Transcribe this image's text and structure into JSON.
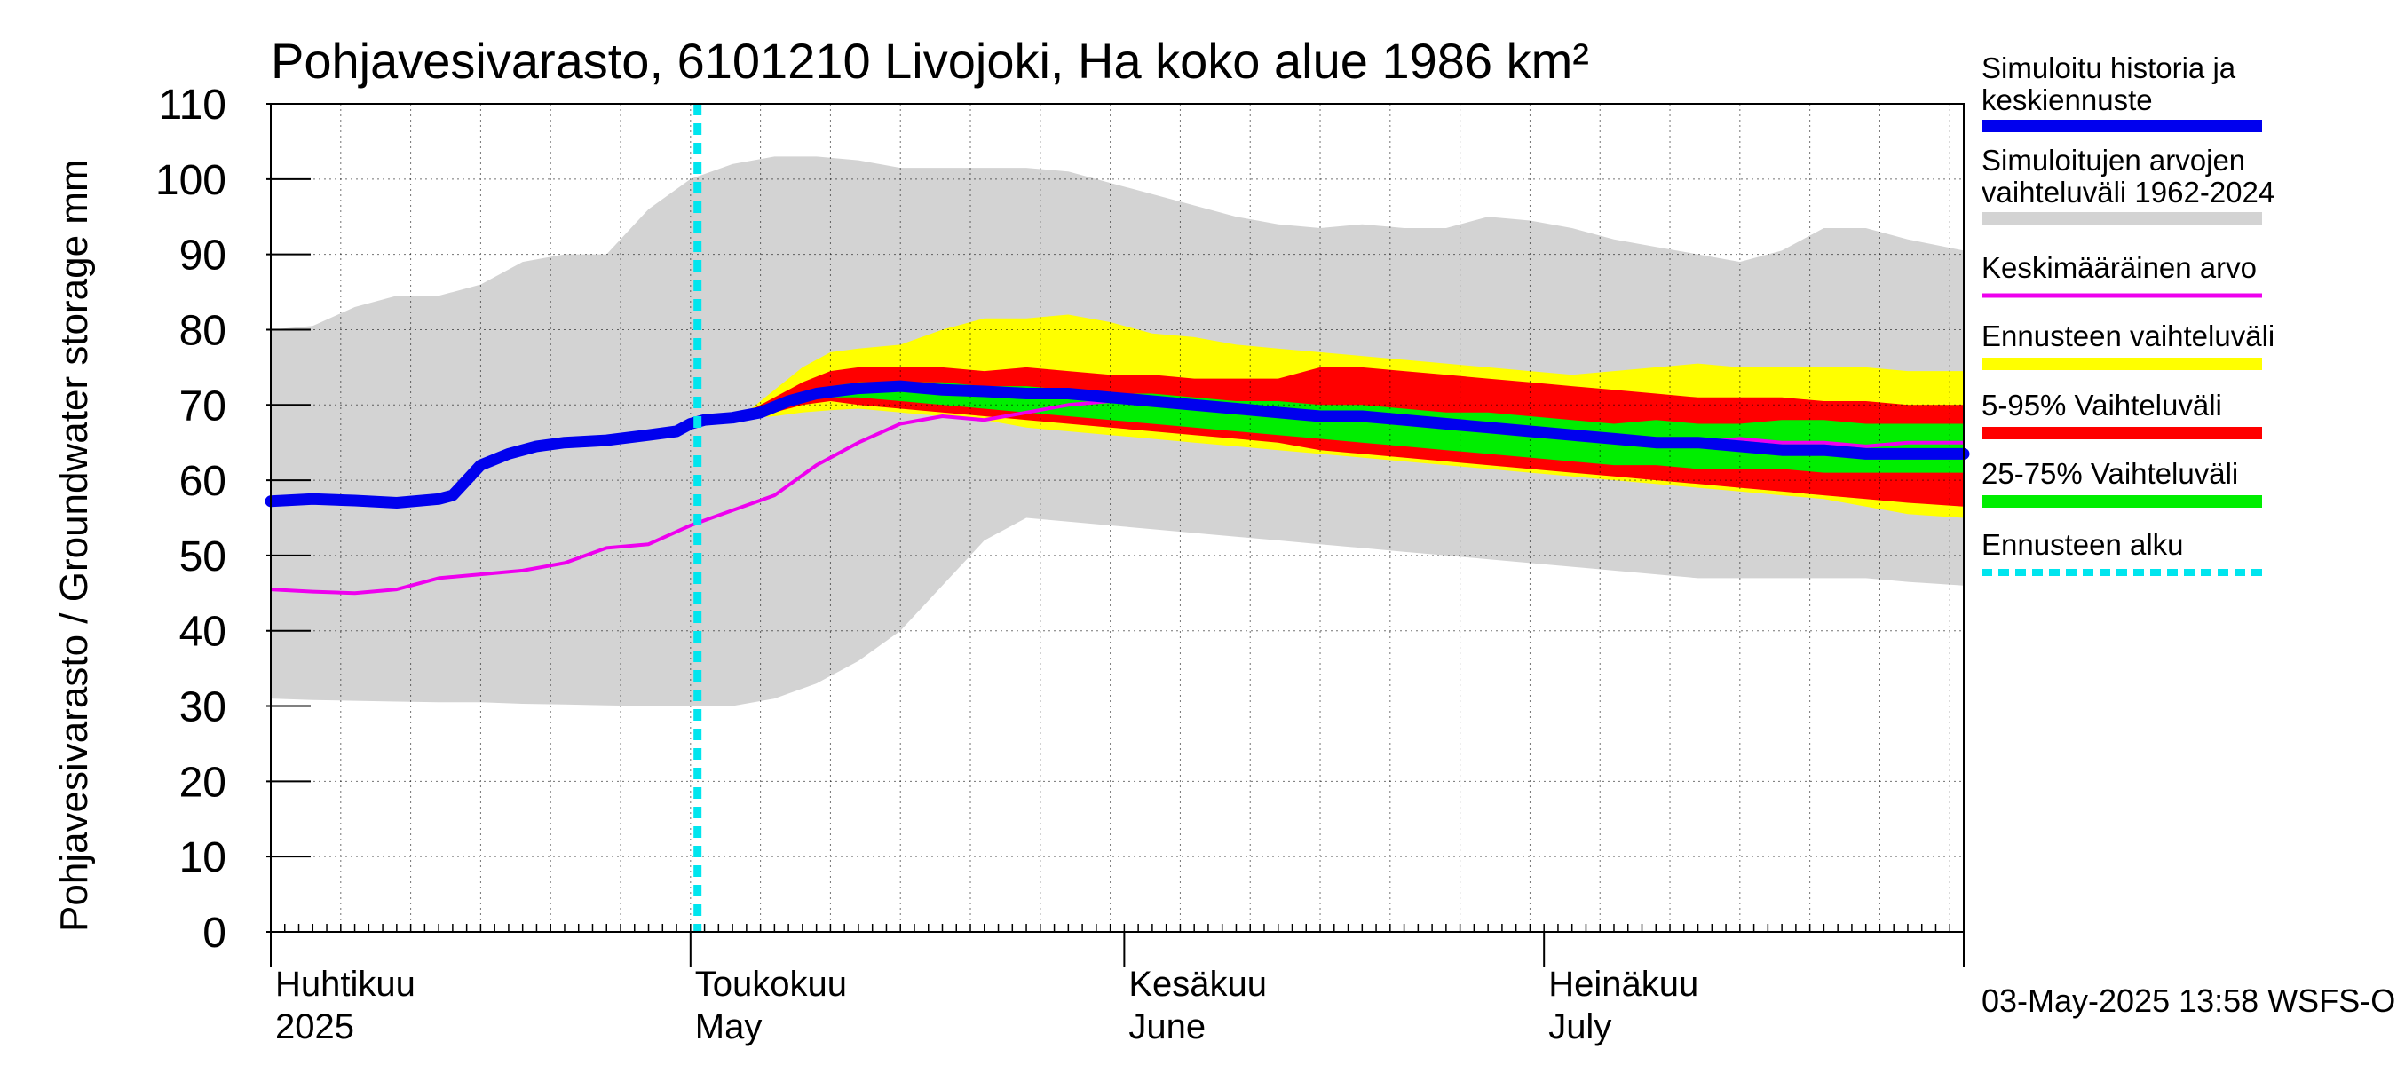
{
  "chart_data": {
    "type": "area",
    "title": "Pohjavesivarasto, 6101210 Livojoki, Ha koko alue 1986 km²",
    "ylabel": "Pohjavesivarasto / Groundwater storage   mm",
    "ylim": [
      0,
      110
    ],
    "yticks": [
      0,
      10,
      20,
      30,
      40,
      50,
      60,
      70,
      80,
      90,
      100,
      110
    ],
    "xlim_days": [
      0,
      121
    ],
    "x_unit": "days since 2025-04-01",
    "month_starts": [
      0,
      30,
      61,
      91
    ],
    "months": [
      {
        "fi": "Huhtikuu",
        "en": "2025",
        "day": 0
      },
      {
        "fi": "Toukokuu",
        "en": "May",
        "day": 30
      },
      {
        "fi": "Kesäkuu",
        "en": "June",
        "day": 61
      },
      {
        "fi": "Heinäkuu",
        "en": "July",
        "day": 91
      }
    ],
    "forecast_start_day": 30.5,
    "footer": "03-May-2025 13:58 WSFS-O",
    "legend": [
      {
        "label1": "Simuloitu historia ja",
        "label2": "keskiennuste",
        "color": "#0000ee",
        "style": "thick"
      },
      {
        "label1": "Simuloitujen arvojen",
        "label2": "vaihteluväli 1962-2024",
        "color": "#d3d3d3",
        "style": "band"
      },
      {
        "label1": "Keskimääräinen arvo",
        "label2": "",
        "color": "#ee00ee",
        "style": "line"
      },
      {
        "label1": "Ennusteen vaihteluväli",
        "label2": "",
        "color": "#ffff00",
        "style": "band"
      },
      {
        "label1": "5-95% Vaihteluväli",
        "label2": "",
        "color": "#ff0000",
        "style": "band"
      },
      {
        "label1": "25-75% Vaihteluväli",
        "label2": "",
        "color": "#00ee00",
        "style": "band"
      },
      {
        "label1": "Ennusteen alku",
        "label2": "",
        "color": "#00e5ee",
        "style": "dotted"
      }
    ],
    "series": {
      "hist_range": {
        "x": [
          0,
          3,
          6,
          9,
          12,
          15,
          18,
          21,
          24,
          27,
          30,
          33,
          36,
          39,
          42,
          45,
          48,
          51,
          54,
          57,
          60,
          63,
          66,
          69,
          72,
          75,
          78,
          81,
          84,
          87,
          90,
          93,
          96,
          99,
          102,
          105,
          108,
          111,
          114,
          117,
          121
        ],
        "upper": [
          80,
          80.5,
          83,
          84.5,
          84.5,
          86,
          89,
          90,
          90,
          96,
          100,
          102,
          103,
          103,
          102.5,
          101.5,
          101.5,
          101.5,
          101.5,
          101,
          99.5,
          98,
          96.5,
          95,
          94,
          93.5,
          94,
          93.5,
          93.5,
          95,
          94.5,
          93.5,
          92,
          91,
          90,
          89,
          90.5,
          93.5,
          93.5,
          92,
          90.5
        ],
        "lower": [
          31,
          30.8,
          30.7,
          30.6,
          30.5,
          30.5,
          30.3,
          30.2,
          30.1,
          30,
          30,
          30,
          31,
          33,
          36,
          40,
          46,
          52,
          55,
          54.5,
          54,
          53.5,
          53,
          52.5,
          52,
          51.5,
          51,
          50.5,
          50,
          49.5,
          49,
          48.5,
          48,
          47.5,
          47,
          47,
          47,
          47,
          47,
          46.5,
          46
        ]
      },
      "forecast_range": {
        "x": [
          30,
          32,
          34,
          36,
          38,
          40,
          42,
          45,
          48,
          51,
          54,
          57,
          60,
          63,
          66,
          69,
          72,
          75,
          78,
          81,
          84,
          87,
          90,
          93,
          96,
          99,
          102,
          105,
          108,
          111,
          114,
          117,
          121
        ],
        "upper": [
          68,
          68.3,
          69,
          72,
          75,
          77,
          77.5,
          78,
          80,
          81.5,
          81.5,
          82,
          81,
          79.5,
          79,
          78,
          77.5,
          77,
          76.5,
          76,
          75.5,
          75,
          74.5,
          74,
          74.5,
          75,
          75.5,
          75,
          75,
          75,
          75,
          74.5,
          74.5
        ],
        "lower": [
          68,
          68,
          68.2,
          68.5,
          69,
          69.3,
          69.5,
          69,
          68.5,
          68,
          67,
          66.5,
          66,
          65.5,
          65,
          64.5,
          64,
          63.5,
          63,
          62.5,
          62,
          61.5,
          61,
          60.5,
          60,
          59.5,
          59,
          58.5,
          58,
          57.5,
          56.5,
          55.5,
          55
        ]
      },
      "p5_95": {
        "x": [
          30,
          32,
          34,
          36,
          38,
          40,
          42,
          45,
          48,
          51,
          54,
          57,
          60,
          63,
          66,
          69,
          72,
          75,
          78,
          81,
          84,
          87,
          90,
          93,
          96,
          99,
          102,
          105,
          108,
          111,
          114,
          117,
          121
        ],
        "upper": [
          68,
          68.3,
          69,
          71,
          73,
          74.5,
          75,
          75,
          75,
          74.5,
          75,
          74.5,
          74,
          74,
          73.5,
          73.5,
          73.5,
          75,
          75,
          74.5,
          74,
          73.5,
          73,
          72.5,
          72,
          71.5,
          71,
          71,
          71,
          70.5,
          70.5,
          70,
          70
        ],
        "lower": [
          68,
          68,
          68.3,
          69,
          70,
          70.5,
          70,
          69.5,
          69,
          68.5,
          68,
          67.5,
          67,
          66.5,
          66,
          65.5,
          65,
          64,
          63.5,
          63,
          62.5,
          62,
          61.5,
          61,
          60.5,
          60,
          59.5,
          59,
          58.5,
          58,
          57.5,
          57,
          56.5
        ]
      },
      "p25_75": {
        "x": [
          30,
          32,
          34,
          36,
          38,
          40,
          42,
          45,
          48,
          51,
          54,
          57,
          60,
          63,
          66,
          69,
          72,
          75,
          78,
          81,
          84,
          87,
          90,
          93,
          96,
          99,
          102,
          105,
          108,
          111,
          114,
          117,
          121
        ],
        "upper": [
          68,
          68.2,
          68.8,
          70,
          71.5,
          72.5,
          73,
          73,
          73,
          72.5,
          72.5,
          72,
          71.5,
          71.5,
          71,
          70.5,
          70.5,
          70,
          70,
          69.5,
          69,
          69,
          68.5,
          68,
          67.5,
          68,
          67.5,
          67.5,
          68,
          68,
          67.5,
          67.5,
          67.5
        ],
        "lower": [
          68,
          68.1,
          68.5,
          69.5,
          70.5,
          71,
          71,
          70.5,
          70,
          69.5,
          69,
          68.5,
          68,
          67.5,
          67,
          66.5,
          66,
          65.5,
          65,
          64.5,
          64,
          63.5,
          63,
          62.5,
          62,
          62,
          61.5,
          61.5,
          61.5,
          61,
          61,
          61,
          61
        ]
      },
      "mean": {
        "x": [
          0,
          3,
          6,
          9,
          12,
          15,
          18,
          21,
          24,
          27,
          30,
          33,
          36,
          39,
          42,
          45,
          48,
          51,
          54,
          57,
          60,
          63,
          66,
          69,
          72,
          75,
          78,
          81,
          84,
          87,
          90,
          93,
          96,
          99,
          102,
          105,
          108,
          111,
          114,
          117,
          121
        ],
        "values": [
          45.5,
          45.2,
          45,
          45.5,
          47,
          47.5,
          48,
          49,
          51,
          51.5,
          54,
          56,
          58,
          62,
          65,
          67.5,
          68.5,
          68,
          69,
          70,
          70.5,
          70,
          69.5,
          69,
          68.5,
          68.5,
          68,
          67.5,
          67,
          66.5,
          66,
          65.5,
          65.5,
          65,
          65,
          65.5,
          65,
          65,
          64.5,
          65,
          65
        ]
      },
      "median_forecast": {
        "x": [
          0,
          3,
          6,
          9,
          12,
          13,
          15,
          17,
          19,
          21,
          24,
          27,
          29,
          30,
          31,
          33,
          35,
          37,
          39,
          42,
          45,
          48,
          51,
          54,
          57,
          60,
          63,
          66,
          69,
          72,
          75,
          78,
          81,
          84,
          87,
          90,
          93,
          96,
          99,
          102,
          105,
          108,
          111,
          114,
          117,
          121
        ],
        "values": [
          57.2,
          57.5,
          57.3,
          57,
          57.5,
          58,
          62,
          63.5,
          64.5,
          65,
          65.3,
          66,
          66.5,
          67.5,
          68,
          68.3,
          69,
          70.5,
          71.5,
          72.2,
          72.5,
          72,
          71.8,
          71.5,
          71.5,
          71,
          70.5,
          70,
          69.5,
          69,
          68.5,
          68.5,
          68,
          67.5,
          67,
          66.5,
          66,
          65.5,
          65,
          65,
          64.5,
          64,
          64,
          63.5,
          63.5,
          63.5
        ]
      }
    }
  }
}
